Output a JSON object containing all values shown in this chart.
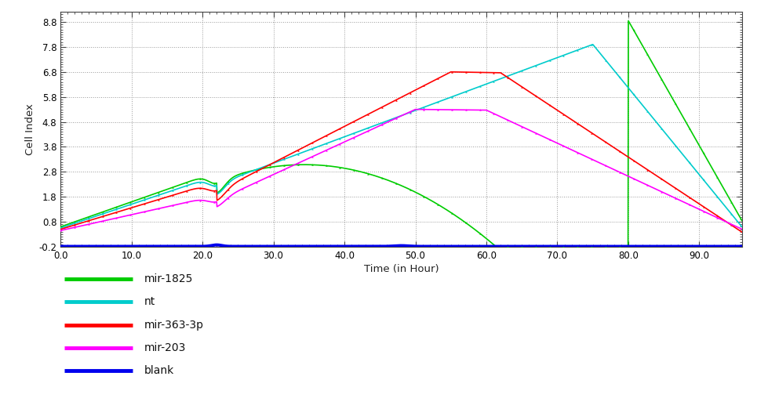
{
  "title": "",
  "xlabel": "Time (in Hour)",
  "ylabel": "Cell Index",
  "xlim": [
    0.0,
    96.0
  ],
  "ylim": [
    -0.2,
    9.2
  ],
  "yticks": [
    -0.2,
    0.8,
    1.8,
    2.8,
    3.8,
    4.8,
    5.8,
    6.8,
    7.8,
    8.8
  ],
  "xticks": [
    0.0,
    10.0,
    20.0,
    30.0,
    40.0,
    50.0,
    60.0,
    70.0,
    80.0,
    90.0
  ],
  "series_labels": [
    "mir-1825",
    "nt",
    "mir-363-3p",
    "mir-203",
    "blank"
  ],
  "series_colors": [
    "#00cc00",
    "#00cccc",
    "#ff0000",
    "#ff00ff",
    "#0000ee"
  ],
  "background_color": "#ffffff",
  "grid_color": "#aaaaaa",
  "linewidth": 1.2,
  "blank_linewidth": 2.8
}
